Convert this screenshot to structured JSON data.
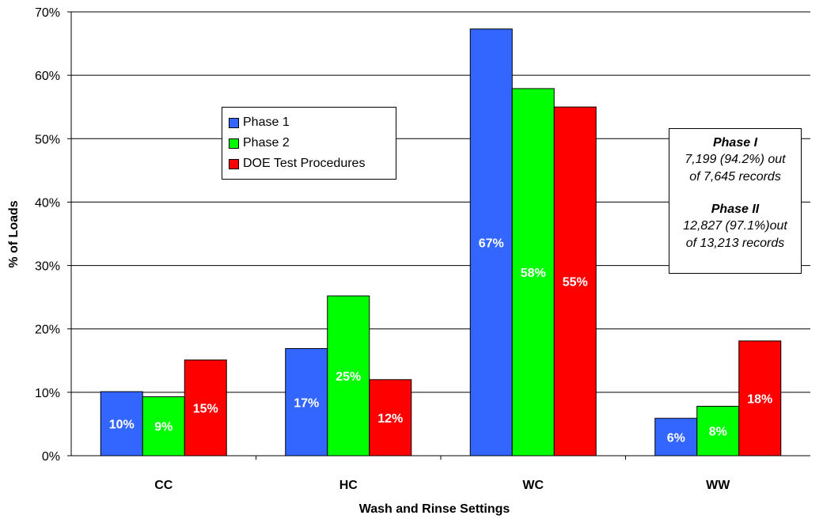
{
  "chart_data": {
    "type": "bar",
    "title": "",
    "xlabel": "Wash and Rinse Settings",
    "ylabel": "% of Loads",
    "ylim": [
      0,
      70
    ],
    "yticks": [
      "0%",
      "10%",
      "20%",
      "30%",
      "40%",
      "50%",
      "60%",
      "70%"
    ],
    "categories": [
      "CC",
      "HC",
      "WC",
      "WW"
    ],
    "series": [
      {
        "name": "Phase 1",
        "color": "#3366ff",
        "values": [
          10.1,
          16.9,
          67.3,
          5.9
        ],
        "labels": [
          "10%",
          "17%",
          "67%",
          "6%"
        ]
      },
      {
        "name": "Phase 2",
        "color": "#00ff00",
        "values": [
          9.3,
          25.2,
          57.9,
          7.8
        ],
        "labels": [
          "9%",
          "25%",
          "58%",
          "8%"
        ]
      },
      {
        "name": "DOE Test Procedures",
        "color": "#ff0000",
        "values": [
          15.1,
          12.0,
          55.0,
          18.1
        ],
        "labels": [
          "15%",
          "12%",
          "55%",
          "18%"
        ]
      }
    ],
    "grid": true,
    "legend": "inside upper-left",
    "annotation": {
      "phase1_title": "Phase I",
      "phase1_line1": "7,199 (94.2%) out",
      "phase1_line2": "of 7,645 records",
      "phase2_title": "Phase II",
      "phase2_line1": "12,827 (97.1%)out",
      "phase2_line2": "of 13,213 records"
    }
  }
}
